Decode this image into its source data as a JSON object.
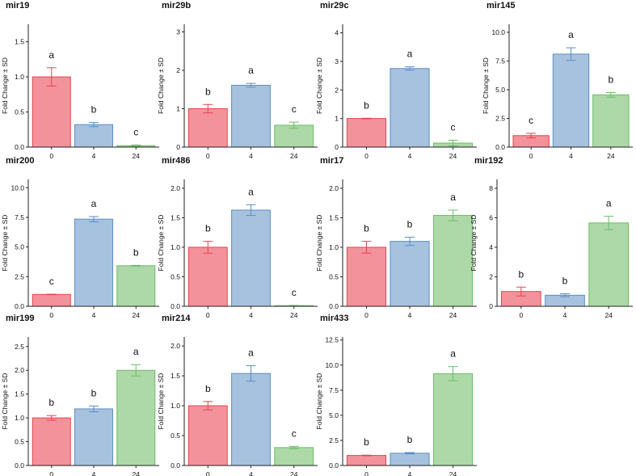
{
  "figure": {
    "ylabel": "Fold Change ± SD",
    "colors": {
      "0": {
        "fill": "#f3929b",
        "stroke": "#e8424f"
      },
      "4": {
        "fill": "#a7c2de",
        "stroke": "#5b8ec4"
      },
      "24": {
        "fill": "#add9a8",
        "stroke": "#6dbb68"
      },
      "axis": "#222222",
      "text": "#111111"
    }
  },
  "chart_data": [
    {
      "type": "bar",
      "title": "mir19",
      "ylabel": "Fold Change ± SD",
      "categories": [
        "0",
        "4",
        "24"
      ],
      "values": [
        1.0,
        0.32,
        0.02
      ],
      "errors": [
        0.13,
        0.03,
        0.01
      ],
      "letters": [
        "a",
        "b",
        "c"
      ],
      "ylim": [
        0,
        1.75
      ],
      "yticks": [
        "0.0",
        "0.5",
        "1.0",
        "1.5"
      ]
    },
    {
      "type": "bar",
      "title": "mir29b",
      "ylabel": "Fold Change ± SD",
      "categories": [
        "0",
        "4",
        "24"
      ],
      "values": [
        1.0,
        1.61,
        0.57
      ],
      "errors": [
        0.11,
        0.05,
        0.08
      ],
      "letters": [
        "b",
        "a",
        "c"
      ],
      "ylim": [
        0,
        3.2
      ],
      "yticks": [
        "0",
        "1",
        "2",
        "3"
      ]
    },
    {
      "type": "bar",
      "title": "mir29c",
      "ylabel": "Fold Change ± SD",
      "categories": [
        "0",
        "4",
        "24"
      ],
      "values": [
        1.0,
        2.75,
        0.14
      ],
      "errors": [
        0.01,
        0.06,
        0.1
      ],
      "letters": [
        "b",
        "a",
        "c"
      ],
      "ylim": [
        0,
        4.3
      ],
      "yticks": [
        "0",
        "1",
        "2",
        "3",
        "4"
      ]
    },
    {
      "type": "bar",
      "title": "mir145",
      "ylabel": "Fold Change ± SD",
      "categories": [
        "0",
        "4",
        "24"
      ],
      "values": [
        1.0,
        8.1,
        4.55
      ],
      "errors": [
        0.2,
        0.55,
        0.2
      ],
      "letters": [
        "c",
        "a",
        "b"
      ],
      "ylim": [
        0,
        10.7
      ],
      "yticks": [
        "0.0",
        "2.5",
        "5.0",
        "7.5",
        "10.0"
      ]
    },
    {
      "type": "bar",
      "title": "mir200",
      "ylabel": "Fold Change ± SD",
      "categories": [
        "0",
        "4",
        "24"
      ],
      "values": [
        1.0,
        7.35,
        3.42
      ],
      "errors": [
        0.02,
        0.22,
        0.03
      ],
      "letters": [
        "c",
        "a",
        "b"
      ],
      "ylim": [
        0,
        10.7
      ],
      "yticks": [
        "0.0",
        "2.5",
        "5.0",
        "7.5",
        "10.0"
      ]
    },
    {
      "type": "bar",
      "title": "mir486",
      "ylabel": "Fold Change ± SD",
      "categories": [
        "0",
        "4",
        "24"
      ],
      "values": [
        1.0,
        1.63,
        0.01
      ],
      "errors": [
        0.1,
        0.09,
        0.005
      ],
      "letters": [
        "b",
        "a",
        "c"
      ],
      "ylim": [
        0,
        2.15
      ],
      "yticks": [
        "0.0",
        "0.5",
        "1.0",
        "1.5",
        "2.0"
      ]
    },
    {
      "type": "bar",
      "title": "mir17",
      "ylabel": "Fold Change ± SD",
      "categories": [
        "0",
        "4",
        "24"
      ],
      "values": [
        1.0,
        1.1,
        1.54
      ],
      "errors": [
        0.1,
        0.07,
        0.09
      ],
      "letters": [
        "b",
        "b",
        "a"
      ],
      "ylim": [
        0,
        2.15
      ],
      "yticks": [
        "0.0",
        "0.5",
        "1.0",
        "1.5",
        "2.0"
      ]
    },
    {
      "type": "bar",
      "title": "mir192",
      "ylabel": "Fold Change ± SD",
      "categories": [
        "0",
        "4",
        "24"
      ],
      "values": [
        1.0,
        0.75,
        5.65
      ],
      "errors": [
        0.3,
        0.1,
        0.45
      ],
      "letters": [
        "b",
        "b",
        "a"
      ],
      "ylim": [
        0,
        8.6
      ],
      "yticks": [
        "0",
        "2",
        "4",
        "6",
        "8"
      ]
    },
    {
      "type": "bar",
      "title": "mir199",
      "ylabel": "Fold Change ± SD",
      "categories": [
        "0",
        "4",
        "24"
      ],
      "values": [
        1.0,
        1.19,
        2.0
      ],
      "errors": [
        0.05,
        0.06,
        0.12
      ],
      "letters": [
        "b",
        "b",
        "a"
      ],
      "ylim": [
        0,
        2.7
      ],
      "yticks": [
        "0.0",
        "0.5",
        "1.0",
        "1.5",
        "2.0",
        "2.5"
      ]
    },
    {
      "type": "bar",
      "title": "mir214",
      "ylabel": "Fold Change ± SD",
      "categories": [
        "0",
        "4",
        "24"
      ],
      "values": [
        1.0,
        1.54,
        0.3
      ],
      "errors": [
        0.07,
        0.13,
        0.02
      ],
      "letters": [
        "b",
        "a",
        "c"
      ],
      "ylim": [
        0,
        2.15
      ],
      "yticks": [
        "0.0",
        "0.5",
        "1.0",
        "1.5",
        "2.0"
      ]
    },
    {
      "type": "bar",
      "title": "mir433",
      "ylabel": "Fold Change ± SD",
      "categories": [
        "0",
        "4",
        "24"
      ],
      "values": [
        1.0,
        1.22,
        9.15
      ],
      "errors": [
        0.03,
        0.07,
        0.7
      ],
      "letters": [
        "b",
        "b",
        "a"
      ],
      "ylim": [
        0,
        12.8
      ],
      "yticks": [
        "0.0",
        "2.5",
        "5.0",
        "7.5",
        "10.0",
        "12.5"
      ]
    }
  ]
}
